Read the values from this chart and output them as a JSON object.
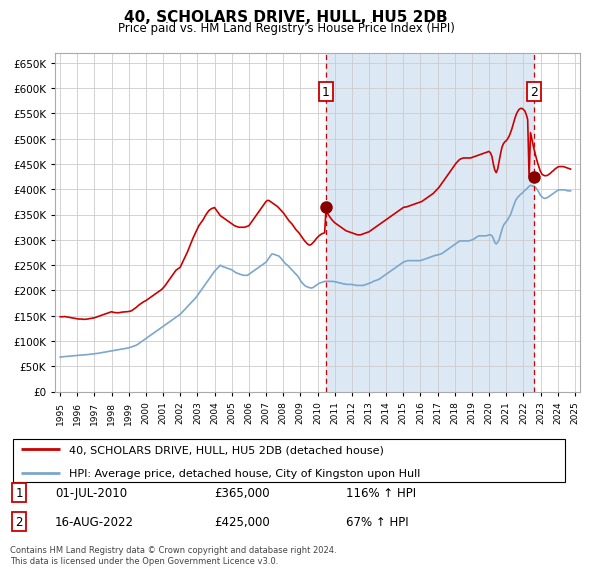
{
  "title": "40, SCHOLARS DRIVE, HULL, HU5 2DB",
  "subtitle": "Price paid vs. HM Land Registry's House Price Index (HPI)",
  "ylim": [
    0,
    670000
  ],
  "yticks": [
    0,
    50000,
    100000,
    150000,
    200000,
    250000,
    300000,
    350000,
    400000,
    450000,
    500000,
    550000,
    600000,
    650000
  ],
  "plot_bg": "#ffffff",
  "shade_color": "#dce9f5",
  "legend_entry1": "40, SCHOLARS DRIVE, HULL, HU5 2DB (detached house)",
  "legend_entry2": "HPI: Average price, detached house, City of Kingston upon Hull",
  "sale1_label": "1",
  "sale1_date": "01-JUL-2010",
  "sale1_price": "£365,000",
  "sale1_hpi": "116% ↑ HPI",
  "sale1_year": 2010.5,
  "sale1_value": 365000,
  "sale2_label": "2",
  "sale2_date": "16-AUG-2022",
  "sale2_price": "£425,000",
  "sale2_hpi": "67% ↑ HPI",
  "sale2_year": 2022.625,
  "sale2_value": 425000,
  "footer": "Contains HM Land Registry data © Crown copyright and database right 2024.\nThis data is licensed under the Open Government Licence v3.0.",
  "red_color": "#cc0000",
  "blue_color": "#7ba7cc",
  "xmin": 1995,
  "xmax": 2025,
  "hpi_x": [
    1995.0,
    1995.083,
    1995.167,
    1995.25,
    1995.333,
    1995.417,
    1995.5,
    1995.583,
    1995.667,
    1995.75,
    1995.833,
    1995.917,
    1996.0,
    1996.083,
    1996.167,
    1996.25,
    1996.333,
    1996.417,
    1996.5,
    1996.583,
    1996.667,
    1996.75,
    1996.833,
    1996.917,
    1997.0,
    1997.083,
    1997.167,
    1997.25,
    1997.333,
    1997.417,
    1997.5,
    1997.583,
    1997.667,
    1997.75,
    1997.833,
    1997.917,
    1998.0,
    1998.083,
    1998.167,
    1998.25,
    1998.333,
    1998.417,
    1998.5,
    1998.583,
    1998.667,
    1998.75,
    1998.833,
    1998.917,
    1999.0,
    1999.083,
    1999.167,
    1999.25,
    1999.333,
    1999.417,
    1999.5,
    1999.583,
    1999.667,
    1999.75,
    1999.833,
    1999.917,
    2000.0,
    2000.083,
    2000.167,
    2000.25,
    2000.333,
    2000.417,
    2000.5,
    2000.583,
    2000.667,
    2000.75,
    2000.833,
    2000.917,
    2001.0,
    2001.083,
    2001.167,
    2001.25,
    2001.333,
    2001.417,
    2001.5,
    2001.583,
    2001.667,
    2001.75,
    2001.833,
    2001.917,
    2002.0,
    2002.083,
    2002.167,
    2002.25,
    2002.333,
    2002.417,
    2002.5,
    2002.583,
    2002.667,
    2002.75,
    2002.833,
    2002.917,
    2003.0,
    2003.083,
    2003.167,
    2003.25,
    2003.333,
    2003.417,
    2003.5,
    2003.583,
    2003.667,
    2003.75,
    2003.833,
    2003.917,
    2004.0,
    2004.083,
    2004.167,
    2004.25,
    2004.333,
    2004.417,
    2004.5,
    2004.583,
    2004.667,
    2004.75,
    2004.833,
    2004.917,
    2005.0,
    2005.083,
    2005.167,
    2005.25,
    2005.333,
    2005.417,
    2005.5,
    2005.583,
    2005.667,
    2005.75,
    2005.833,
    2005.917,
    2006.0,
    2006.083,
    2006.167,
    2006.25,
    2006.333,
    2006.417,
    2006.5,
    2006.583,
    2006.667,
    2006.75,
    2006.833,
    2006.917,
    2007.0,
    2007.083,
    2007.167,
    2007.25,
    2007.333,
    2007.417,
    2007.5,
    2007.583,
    2007.667,
    2007.75,
    2007.833,
    2007.917,
    2008.0,
    2008.083,
    2008.167,
    2008.25,
    2008.333,
    2008.417,
    2008.5,
    2008.583,
    2008.667,
    2008.75,
    2008.833,
    2008.917,
    2009.0,
    2009.083,
    2009.167,
    2009.25,
    2009.333,
    2009.417,
    2009.5,
    2009.583,
    2009.667,
    2009.75,
    2009.833,
    2009.917,
    2010.0,
    2010.083,
    2010.167,
    2010.25,
    2010.333,
    2010.417,
    2010.5,
    2010.583,
    2010.667,
    2010.75,
    2010.833,
    2010.917,
    2011.0,
    2011.083,
    2011.167,
    2011.25,
    2011.333,
    2011.417,
    2011.5,
    2011.583,
    2011.667,
    2011.75,
    2011.833,
    2011.917,
    2012.0,
    2012.083,
    2012.167,
    2012.25,
    2012.333,
    2012.417,
    2012.5,
    2012.583,
    2012.667,
    2012.75,
    2012.833,
    2012.917,
    2013.0,
    2013.083,
    2013.167,
    2013.25,
    2013.333,
    2013.417,
    2013.5,
    2013.583,
    2013.667,
    2013.75,
    2013.833,
    2013.917,
    2014.0,
    2014.083,
    2014.167,
    2014.25,
    2014.333,
    2014.417,
    2014.5,
    2014.583,
    2014.667,
    2014.75,
    2014.833,
    2014.917,
    2015.0,
    2015.083,
    2015.167,
    2015.25,
    2015.333,
    2015.417,
    2015.5,
    2015.583,
    2015.667,
    2015.75,
    2015.833,
    2015.917,
    2016.0,
    2016.083,
    2016.167,
    2016.25,
    2016.333,
    2016.417,
    2016.5,
    2016.583,
    2016.667,
    2016.75,
    2016.833,
    2016.917,
    2017.0,
    2017.083,
    2017.167,
    2017.25,
    2017.333,
    2017.417,
    2017.5,
    2017.583,
    2017.667,
    2017.75,
    2017.833,
    2017.917,
    2018.0,
    2018.083,
    2018.167,
    2018.25,
    2018.333,
    2018.417,
    2018.5,
    2018.583,
    2018.667,
    2018.75,
    2018.833,
    2018.917,
    2019.0,
    2019.083,
    2019.167,
    2019.25,
    2019.333,
    2019.417,
    2019.5,
    2019.583,
    2019.667,
    2019.75,
    2019.833,
    2019.917,
    2020.0,
    2020.083,
    2020.167,
    2020.25,
    2020.333,
    2020.417,
    2020.5,
    2020.583,
    2020.667,
    2020.75,
    2020.833,
    2020.917,
    2021.0,
    2021.083,
    2021.167,
    2021.25,
    2021.333,
    2021.417,
    2021.5,
    2021.583,
    2021.667,
    2021.75,
    2021.833,
    2021.917,
    2022.0,
    2022.083,
    2022.167,
    2022.25,
    2022.333,
    2022.417,
    2022.5,
    2022.583,
    2022.667,
    2022.75,
    2022.833,
    2022.917,
    2023.0,
    2023.083,
    2023.167,
    2023.25,
    2023.333,
    2023.417,
    2023.5,
    2023.583,
    2023.667,
    2023.75,
    2023.833,
    2023.917,
    2024.0,
    2024.083,
    2024.167,
    2024.25,
    2024.333,
    2024.417,
    2024.5,
    2024.583,
    2024.667,
    2024.75
  ],
  "hpi_y": [
    68000,
    68500,
    69000,
    69200,
    69500,
    69800,
    70000,
    70200,
    70500,
    70800,
    71000,
    71200,
    71500,
    71800,
    72000,
    72200,
    72500,
    72800,
    73000,
    73200,
    73500,
    73800,
    74000,
    74200,
    74500,
    75000,
    75500,
    76000,
    76500,
    77000,
    77500,
    78000,
    78500,
    79000,
    79500,
    80000,
    80500,
    81000,
    81500,
    82000,
    82500,
    83000,
    83500,
    84000,
    84500,
    85000,
    85500,
    86000,
    86500,
    87500,
    88500,
    89500,
    90500,
    91500,
    93000,
    95000,
    97000,
    99000,
    101000,
    103000,
    105000,
    107000,
    109000,
    111000,
    113000,
    115000,
    117000,
    119000,
    121000,
    123000,
    125000,
    127000,
    129000,
    131000,
    133000,
    135000,
    137000,
    139000,
    141000,
    143000,
    145000,
    147000,
    149000,
    151000,
    153000,
    156000,
    159000,
    162000,
    165000,
    168000,
    171000,
    174000,
    177000,
    180000,
    183000,
    186000,
    190000,
    194000,
    198000,
    202000,
    206000,
    210000,
    214000,
    218000,
    222000,
    226000,
    230000,
    234000,
    238000,
    241000,
    244000,
    247000,
    250000,
    248000,
    247000,
    246000,
    245000,
    244000,
    243000,
    242000,
    241000,
    239000,
    237000,
    235000,
    234000,
    233000,
    232000,
    231000,
    230000,
    230000,
    230000,
    230000,
    232000,
    234000,
    236000,
    238000,
    240000,
    242000,
    244000,
    246000,
    248000,
    250000,
    252000,
    254000,
    256000,
    260000,
    264000,
    268000,
    272000,
    272000,
    271000,
    270000,
    269000,
    268000,
    265000,
    262000,
    258000,
    255000,
    252000,
    250000,
    247000,
    244000,
    241000,
    238000,
    235000,
    232000,
    229000,
    225000,
    220000,
    216000,
    213000,
    210000,
    208000,
    207000,
    206000,
    205000,
    205000,
    206000,
    208000,
    210000,
    212000,
    214000,
    215000,
    216000,
    217000,
    218000,
    218000,
    218000,
    218000,
    218000,
    218000,
    218000,
    217000,
    217000,
    216000,
    215000,
    215000,
    214000,
    213000,
    213000,
    212000,
    212000,
    212000,
    212000,
    212000,
    211000,
    211000,
    210000,
    210000,
    210000,
    210000,
    210000,
    210000,
    211000,
    212000,
    213000,
    214000,
    215000,
    216000,
    218000,
    219000,
    220000,
    221000,
    222000,
    224000,
    226000,
    228000,
    230000,
    232000,
    234000,
    236000,
    238000,
    240000,
    242000,
    244000,
    246000,
    248000,
    250000,
    252000,
    254000,
    256000,
    257000,
    258000,
    259000,
    259000,
    259000,
    259000,
    259000,
    259000,
    259000,
    259000,
    259000,
    259000,
    260000,
    261000,
    262000,
    263000,
    264000,
    265000,
    266000,
    267000,
    268000,
    269000,
    270000,
    270000,
    271000,
    272000,
    273000,
    275000,
    277000,
    279000,
    281000,
    283000,
    285000,
    287000,
    289000,
    291000,
    293000,
    295000,
    297000,
    298000,
    298000,
    298000,
    298000,
    298000,
    298000,
    298000,
    299000,
    300000,
    301000,
    303000,
    305000,
    307000,
    308000,
    308000,
    308000,
    308000,
    308000,
    308000,
    309000,
    310000,
    310000,
    308000,
    303000,
    295000,
    292000,
    295000,
    300000,
    310000,
    320000,
    328000,
    333000,
    336000,
    340000,
    345000,
    350000,
    358000,
    366000,
    374000,
    380000,
    384000,
    387000,
    390000,
    392000,
    395000,
    398000,
    400000,
    403000,
    406000,
    408000,
    407000,
    406000,
    405000,
    402000,
    398000,
    393000,
    388000,
    385000,
    383000,
    382000,
    383000,
    384000,
    386000,
    388000,
    390000,
    392000,
    394000,
    396000,
    398000,
    399000,
    399000,
    399000,
    399000,
    399000,
    398000,
    397000,
    397000,
    397000
  ],
  "price_x": [
    1995.0,
    1995.083,
    1995.167,
    1995.25,
    1995.333,
    1995.417,
    1995.5,
    1995.583,
    1995.667,
    1995.75,
    1995.833,
    1995.917,
    1996.0,
    1996.083,
    1996.167,
    1996.25,
    1996.333,
    1996.417,
    1996.5,
    1996.583,
    1996.667,
    1996.75,
    1996.833,
    1996.917,
    1997.0,
    1997.083,
    1997.167,
    1997.25,
    1997.333,
    1997.417,
    1997.5,
    1997.583,
    1997.667,
    1997.75,
    1997.833,
    1997.917,
    1998.0,
    1998.083,
    1998.167,
    1998.25,
    1998.333,
    1998.417,
    1998.5,
    1998.583,
    1998.667,
    1998.75,
    1998.833,
    1998.917,
    1999.0,
    1999.083,
    1999.167,
    1999.25,
    1999.333,
    1999.417,
    1999.5,
    1999.583,
    1999.667,
    1999.75,
    1999.833,
    1999.917,
    2000.0,
    2000.083,
    2000.167,
    2000.25,
    2000.333,
    2000.417,
    2000.5,
    2000.583,
    2000.667,
    2000.75,
    2000.833,
    2000.917,
    2001.0,
    2001.083,
    2001.167,
    2001.25,
    2001.333,
    2001.417,
    2001.5,
    2001.583,
    2001.667,
    2001.75,
    2001.833,
    2001.917,
    2002.0,
    2002.083,
    2002.167,
    2002.25,
    2002.333,
    2002.417,
    2002.5,
    2002.583,
    2002.667,
    2002.75,
    2002.833,
    2002.917,
    2003.0,
    2003.083,
    2003.167,
    2003.25,
    2003.333,
    2003.417,
    2003.5,
    2003.583,
    2003.667,
    2003.75,
    2003.833,
    2003.917,
    2004.0,
    2004.083,
    2004.167,
    2004.25,
    2004.333,
    2004.417,
    2004.5,
    2004.583,
    2004.667,
    2004.75,
    2004.833,
    2004.917,
    2005.0,
    2005.083,
    2005.167,
    2005.25,
    2005.333,
    2005.417,
    2005.5,
    2005.583,
    2005.667,
    2005.75,
    2005.833,
    2005.917,
    2006.0,
    2006.083,
    2006.167,
    2006.25,
    2006.333,
    2006.417,
    2006.5,
    2006.583,
    2006.667,
    2006.75,
    2006.833,
    2006.917,
    2007.0,
    2007.083,
    2007.167,
    2007.25,
    2007.333,
    2007.417,
    2007.5,
    2007.583,
    2007.667,
    2007.75,
    2007.833,
    2007.917,
    2008.0,
    2008.083,
    2008.167,
    2008.25,
    2008.333,
    2008.417,
    2008.5,
    2008.583,
    2008.667,
    2008.75,
    2008.833,
    2008.917,
    2009.0,
    2009.083,
    2009.167,
    2009.25,
    2009.333,
    2009.417,
    2009.5,
    2009.583,
    2009.667,
    2009.75,
    2009.833,
    2009.917,
    2010.0,
    2010.083,
    2010.167,
    2010.25,
    2010.333,
    2010.417,
    2010.5,
    2010.583,
    2010.667,
    2010.75,
    2010.833,
    2010.917,
    2011.0,
    2011.083,
    2011.167,
    2011.25,
    2011.333,
    2011.417,
    2011.5,
    2011.583,
    2011.667,
    2011.75,
    2011.833,
    2011.917,
    2012.0,
    2012.083,
    2012.167,
    2012.25,
    2012.333,
    2012.417,
    2012.5,
    2012.583,
    2012.667,
    2012.75,
    2012.833,
    2012.917,
    2013.0,
    2013.083,
    2013.167,
    2013.25,
    2013.333,
    2013.417,
    2013.5,
    2013.583,
    2013.667,
    2013.75,
    2013.833,
    2013.917,
    2014.0,
    2014.083,
    2014.167,
    2014.25,
    2014.333,
    2014.417,
    2014.5,
    2014.583,
    2014.667,
    2014.75,
    2014.833,
    2014.917,
    2015.0,
    2015.083,
    2015.167,
    2015.25,
    2015.333,
    2015.417,
    2015.5,
    2015.583,
    2015.667,
    2015.75,
    2015.833,
    2015.917,
    2016.0,
    2016.083,
    2016.167,
    2016.25,
    2016.333,
    2016.417,
    2016.5,
    2016.583,
    2016.667,
    2016.75,
    2016.833,
    2016.917,
    2017.0,
    2017.083,
    2017.167,
    2017.25,
    2017.333,
    2017.417,
    2017.5,
    2017.583,
    2017.667,
    2017.75,
    2017.833,
    2017.917,
    2018.0,
    2018.083,
    2018.167,
    2018.25,
    2018.333,
    2018.417,
    2018.5,
    2018.583,
    2018.667,
    2018.75,
    2018.833,
    2018.917,
    2019.0,
    2019.083,
    2019.167,
    2019.25,
    2019.333,
    2019.417,
    2019.5,
    2019.583,
    2019.667,
    2019.75,
    2019.833,
    2019.917,
    2020.0,
    2020.083,
    2020.167,
    2020.25,
    2020.333,
    2020.417,
    2020.5,
    2020.583,
    2020.667,
    2020.75,
    2020.833,
    2020.917,
    2021.0,
    2021.083,
    2021.167,
    2021.25,
    2021.333,
    2021.417,
    2021.5,
    2021.583,
    2021.667,
    2021.75,
    2021.833,
    2021.917,
    2022.0,
    2022.083,
    2022.167,
    2022.25,
    2022.333,
    2022.417,
    2022.5,
    2022.583,
    2022.667,
    2022.75,
    2022.833,
    2022.917,
    2023.0,
    2023.083,
    2023.167,
    2023.25,
    2023.333,
    2023.417,
    2023.5,
    2023.583,
    2023.667,
    2023.75,
    2023.833,
    2023.917,
    2024.0,
    2024.083,
    2024.167,
    2024.25,
    2024.333,
    2024.417,
    2024.5,
    2024.583,
    2024.667,
    2024.75
  ],
  "price_y": [
    148000,
    148000,
    148000,
    148500,
    148000,
    147500,
    147000,
    146500,
    146000,
    145500,
    145000,
    144500,
    144000,
    143500,
    143500,
    143500,
    143000,
    143000,
    143000,
    143500,
    144000,
    144500,
    145000,
    145500,
    146000,
    147000,
    148000,
    149000,
    150000,
    151000,
    152000,
    153000,
    154000,
    155000,
    156000,
    157000,
    158000,
    157000,
    156500,
    156000,
    156000,
    156000,
    156500,
    157000,
    157500,
    157500,
    158000,
    158000,
    158500,
    159000,
    160000,
    162000,
    164000,
    166000,
    168500,
    171000,
    173000,
    175000,
    177000,
    178500,
    180000,
    182000,
    184000,
    186000,
    188000,
    190000,
    192000,
    194000,
    196000,
    198000,
    200000,
    202000,
    205000,
    208000,
    212000,
    216000,
    220000,
    224000,
    228000,
    232000,
    236000,
    240000,
    242000,
    244000,
    246000,
    252000,
    258000,
    264000,
    270000,
    276000,
    283000,
    290000,
    297000,
    304000,
    310000,
    316000,
    322000,
    328000,
    332000,
    336000,
    340000,
    345000,
    350000,
    354000,
    358000,
    360000,
    362000,
    363000,
    364000,
    360000,
    356000,
    352000,
    348000,
    346000,
    344000,
    342000,
    340000,
    338000,
    336000,
    334000,
    332000,
    330000,
    328000,
    327000,
    326000,
    325000,
    325000,
    325000,
    325000,
    325000,
    326000,
    327000,
    328000,
    332000,
    336000,
    340000,
    344000,
    348000,
    352000,
    356000,
    360000,
    364000,
    368000,
    372000,
    376000,
    378000,
    378000,
    376000,
    374000,
    372000,
    370000,
    368000,
    366000,
    363000,
    360000,
    357000,
    354000,
    350000,
    346000,
    342000,
    338000,
    335000,
    332000,
    328000,
    324000,
    320000,
    317000,
    314000,
    310000,
    306000,
    302000,
    298000,
    295000,
    292000,
    290000,
    290000,
    292000,
    295000,
    298000,
    302000,
    305000,
    308000,
    310000,
    312000,
    313000,
    314000,
    365000,
    353000,
    348000,
    344000,
    340000,
    337000,
    334000,
    332000,
    330000,
    328000,
    326000,
    324000,
    322000,
    320000,
    318000,
    317000,
    316000,
    315000,
    314000,
    313000,
    312000,
    311000,
    310000,
    310000,
    310000,
    311000,
    312000,
    313000,
    314000,
    315000,
    316000,
    318000,
    320000,
    322000,
    324000,
    326000,
    328000,
    330000,
    332000,
    334000,
    336000,
    338000,
    340000,
    342000,
    344000,
    346000,
    348000,
    350000,
    352000,
    354000,
    356000,
    358000,
    360000,
    362000,
    364000,
    365000,
    365000,
    366000,
    367000,
    368000,
    369000,
    370000,
    371000,
    372000,
    373000,
    374000,
    375000,
    376000,
    378000,
    380000,
    382000,
    384000,
    386000,
    388000,
    390000,
    392000,
    395000,
    398000,
    401000,
    404000,
    408000,
    412000,
    416000,
    420000,
    424000,
    428000,
    432000,
    436000,
    440000,
    444000,
    448000,
    452000,
    455000,
    458000,
    460000,
    461000,
    462000,
    462000,
    462000,
    462000,
    462000,
    462000,
    463000,
    464000,
    465000,
    466000,
    467000,
    468000,
    469000,
    470000,
    471000,
    472000,
    473000,
    474000,
    475000,
    472000,
    465000,
    450000,
    438000,
    433000,
    440000,
    455000,
    470000,
    483000,
    490000,
    494000,
    496000,
    500000,
    505000,
    512000,
    520000,
    530000,
    540000,
    548000,
    554000,
    558000,
    560000,
    560000,
    558000,
    555000,
    548000,
    538000,
    425000,
    512000,
    498000,
    485000,
    473000,
    462000,
    452000,
    443000,
    435000,
    430000,
    428000,
    427000,
    427000,
    428000,
    430000,
    432000,
    435000,
    437000,
    440000,
    442000,
    444000,
    445000,
    445000,
    445000,
    445000,
    444000,
    443000,
    442000,
    441000,
    440000
  ]
}
